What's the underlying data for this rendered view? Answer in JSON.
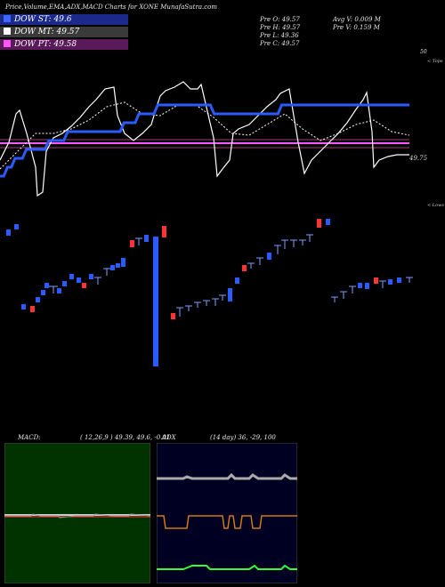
{
  "header": {
    "title": "Price,Volume,EMA,ADX,MACD Charts for XONE MunafaSutra.com",
    "legend": [
      {
        "label": "DOW ST: 49.6",
        "color": "#3f66ff"
      },
      {
        "label": "DOW MT: 49.57",
        "color": "#ffffff"
      },
      {
        "label": "DOW PT: 49.58",
        "color": "#ff55ff"
      }
    ],
    "stats": {
      "pre_o": "Pre   O: 49.57",
      "pre_h": "Pre   H: 49.57",
      "pre_l": "Pre   L: 49.36",
      "pre_c": "Pre   C: 49.57",
      "avg_v": "Avg V: 0.009 M",
      "pre_v": "Pre   V: 0.159 M"
    }
  },
  "chart_data": [
    {
      "type": "line",
      "panel": "indicators",
      "y_labels": {
        "top": "50",
        "mid": "49.75"
      },
      "annotations": {
        "upper": "< Tops",
        "lower": "< Lows"
      },
      "series": [
        {
          "color": "#2a5bff",
          "values": [
            1,
            1,
            2,
            2,
            3,
            3,
            3,
            4,
            4,
            4,
            4,
            4,
            4,
            5,
            5,
            5,
            5,
            5,
            6,
            6,
            6,
            6,
            6,
            6,
            6,
            6,
            6,
            6,
            6,
            6,
            6,
            6,
            6,
            7,
            7,
            7,
            7,
            8,
            8,
            8,
            8,
            8,
            9,
            9,
            9,
            9,
            9,
            9,
            9,
            9,
            9,
            9,
            9,
            9,
            9,
            9,
            9,
            8,
            8,
            8,
            8,
            8,
            8,
            8,
            8,
            8,
            8,
            8,
            8,
            8,
            8,
            8,
            8,
            8,
            8,
            9,
            9,
            9,
            9,
            9,
            9,
            9,
            9,
            9,
            9,
            9,
            9,
            9,
            9,
            9,
            9,
            9,
            9,
            9,
            9,
            9,
            9,
            9,
            9,
            9,
            9,
            9,
            9,
            9,
            9,
            9,
            9,
            9,
            9,
            9
          ]
        },
        {
          "color": "#ff55ff"
        },
        {
          "color": "#ffffff"
        }
      ]
    },
    {
      "type": "candlestick",
      "panel": "price"
    },
    {
      "type": "line",
      "panel": "macd",
      "title": "MACD:",
      "params": "( 12,26,9 ) 49.39, 49.6, -0.01"
    },
    {
      "type": "line",
      "panel": "adx",
      "title": "ADX",
      "params": "(14  day) 36,  -29,  100"
    }
  ]
}
